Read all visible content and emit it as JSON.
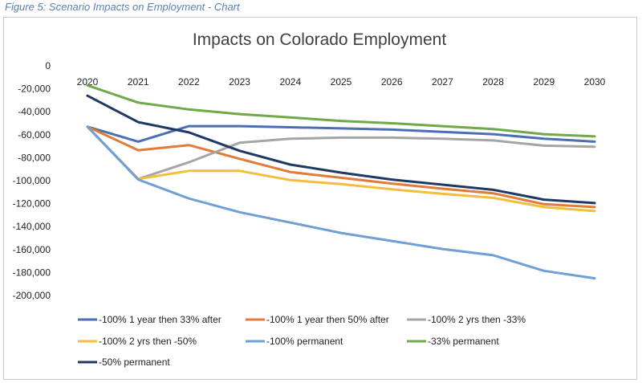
{
  "figure_caption": "Figure 5: Scenario Impacts on Employment - Chart",
  "chart_data": {
    "type": "line",
    "title": "Impacts on Colorado  Employment",
    "xlabel": "",
    "ylabel": "",
    "x": [
      "2020",
      "2021",
      "2022",
      "2023",
      "2024",
      "2025",
      "2026",
      "2027",
      "2028",
      "2029",
      "2030"
    ],
    "ylim": [
      -200000,
      0
    ],
    "yticks": [
      0,
      -20000,
      -40000,
      -60000,
      -80000,
      -100000,
      -120000,
      -140000,
      -160000,
      -180000,
      -200000
    ],
    "ytick_labels": [
      "0",
      "-20,000",
      "-40,000",
      "-60,000",
      "-80,000",
      "-100,000",
      "-120,000",
      "-140,000",
      "-160,000",
      "-180,000",
      "-200,000"
    ],
    "grid": false,
    "legend_position": "bottom",
    "series": [
      {
        "name": "-100% 1 year then 33% after",
        "color": "#4a6fb5",
        "values": [
          -53000,
          -66000,
          -52500,
          -52500,
          -53500,
          -54500,
          -55500,
          -57500,
          -59500,
          -63500,
          -66000
        ]
      },
      {
        "name": "-100% 1 year then 50% after",
        "color": "#e27b3a",
        "values": [
          -53000,
          -73500,
          -69000,
          -81000,
          -92500,
          -97500,
          -102500,
          -107000,
          -111000,
          -120500,
          -123000
        ]
      },
      {
        "name": "-100% 2 yrs then -33%",
        "color": "#a5a5a5",
        "values": [
          -53000,
          -98500,
          -84000,
          -67000,
          -63500,
          -62500,
          -62500,
          -63500,
          -65000,
          -69500,
          -70500
        ]
      },
      {
        "name": "-100% 2 yrs then -50%",
        "color": "#f5bd3c",
        "values": [
          -53000,
          -98500,
          -91500,
          -91500,
          -99500,
          -103000,
          -107500,
          -111500,
          -115000,
          -123000,
          -126500
        ]
      },
      {
        "name": "-100% permanent",
        "color": "#6f9fd6",
        "values": [
          -53000,
          -99000,
          -115500,
          -127500,
          -136500,
          -145500,
          -152500,
          -159500,
          -165000,
          -178500,
          -185000
        ]
      },
      {
        "name": "-33% permanent",
        "color": "#6fa948",
        "values": [
          -17000,
          -32000,
          -38000,
          -42000,
          -45000,
          -48000,
          -50000,
          -52500,
          -55000,
          -59500,
          -61500
        ]
      },
      {
        "name": "-50% permanent",
        "color": "#1f3864",
        "values": [
          -26000,
          -49000,
          -58000,
          -74000,
          -86000,
          -93000,
          -99000,
          -103500,
          -108000,
          -116500,
          -119500
        ]
      }
    ]
  }
}
